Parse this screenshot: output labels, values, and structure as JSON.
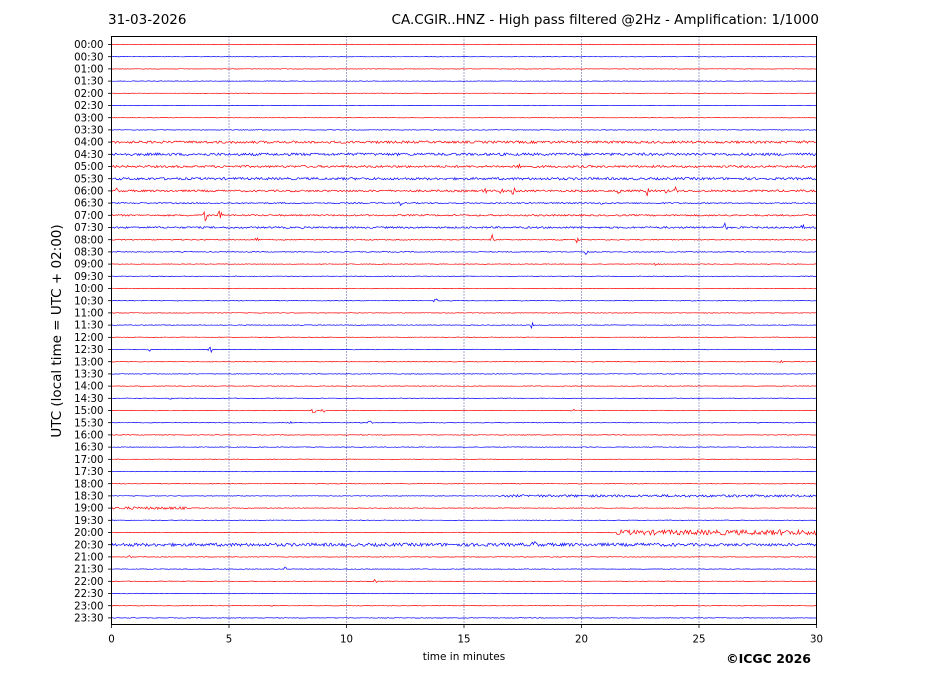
{
  "header": {
    "date": "31-03-2026",
    "title": "CA.CGIR..HNZ - High pass filtered @2Hz - Amplification: 1/1000"
  },
  "footer": {
    "copyright": "©ICGC 2026"
  },
  "colors": {
    "red": "#ff0000",
    "blue": "#0000ff",
    "grid": "#1f2a8f"
  },
  "chart_data": {
    "type": "line",
    "title": "CA.CGIR..HNZ - High pass filtered @2Hz - Amplification: 1/1000",
    "xlabel": "time in minutes",
    "ylabel": "UTC (local time = UTC + 02:00)",
    "xlim": [
      0,
      30
    ],
    "x_ticks": [
      "0",
      "5",
      "10",
      "15",
      "20",
      "25",
      "30"
    ],
    "grid": "vertical dotted at 5-minute intervals",
    "rows": [
      {
        "label": "00:00",
        "color": "red",
        "noise": 0.25
      },
      {
        "label": "00:30",
        "color": "blue",
        "noise": 0.25
      },
      {
        "label": "01:00",
        "color": "red",
        "noise": 0.25
      },
      {
        "label": "01:30",
        "color": "blue",
        "noise": 0.25
      },
      {
        "label": "02:00",
        "color": "red",
        "noise": 0.25
      },
      {
        "label": "02:30",
        "color": "blue",
        "noise": 0.25
      },
      {
        "label": "03:00",
        "color": "red",
        "noise": 0.25
      },
      {
        "label": "03:30",
        "color": "blue",
        "noise": 0.3
      },
      {
        "label": "04:00",
        "color": "red",
        "noise": 1.2
      },
      {
        "label": "04:30",
        "color": "blue",
        "noise": 1.3
      },
      {
        "label": "05:00",
        "color": "red",
        "noise": 1.1,
        "events": [
          [
            17.3,
            3
          ]
        ]
      },
      {
        "label": "05:30",
        "color": "blue",
        "noise": 1.2
      },
      {
        "label": "06:00",
        "color": "red",
        "noise": 1.0,
        "events": [
          [
            0.2,
            3
          ],
          [
            15.9,
            4
          ],
          [
            16.6,
            4
          ],
          [
            17.1,
            5
          ],
          [
            21.6,
            5
          ],
          [
            22.8,
            5
          ],
          [
            23.6,
            3
          ],
          [
            24.0,
            4
          ]
        ]
      },
      {
        "label": "06:30",
        "color": "blue",
        "noise": 0.6,
        "events": [
          [
            12.3,
            3
          ],
          [
            20.8,
            3
          ]
        ]
      },
      {
        "label": "07:00",
        "color": "red",
        "noise": 0.8,
        "events": [
          [
            4.0,
            7
          ],
          [
            4.6,
            6
          ]
        ]
      },
      {
        "label": "07:30",
        "color": "blue",
        "noise": 0.9,
        "events": [
          [
            26.1,
            4
          ],
          [
            29.4,
            3
          ]
        ]
      },
      {
        "label": "08:00",
        "color": "red",
        "noise": 0.5,
        "events": [
          [
            6.2,
            4
          ],
          [
            16.2,
            5
          ],
          [
            19.8,
            3
          ]
        ]
      },
      {
        "label": "08:30",
        "color": "blue",
        "noise": 0.4,
        "events": [
          [
            0.3,
            3
          ],
          [
            20.2,
            3
          ]
        ]
      },
      {
        "label": "09:00",
        "color": "red",
        "noise": 0.3,
        "events": [
          [
            23.2,
            4
          ]
        ]
      },
      {
        "label": "09:30",
        "color": "blue",
        "noise": 0.3
      },
      {
        "label": "10:00",
        "color": "red",
        "noise": 0.3
      },
      {
        "label": "10:30",
        "color": "blue",
        "noise": 0.3,
        "events": [
          [
            13.8,
            3
          ]
        ]
      },
      {
        "label": "11:00",
        "color": "red",
        "noise": 0.3
      },
      {
        "label": "11:30",
        "color": "blue",
        "noise": 0.3,
        "events": [
          [
            17.9,
            4
          ]
        ]
      },
      {
        "label": "12:00",
        "color": "red",
        "noise": 0.3
      },
      {
        "label": "12:30",
        "color": "blue",
        "noise": 0.3,
        "events": [
          [
            1.6,
            3
          ],
          [
            4.2,
            4
          ]
        ]
      },
      {
        "label": "13:00",
        "color": "red",
        "noise": 0.3,
        "events": [
          [
            28.5,
            2
          ]
        ]
      },
      {
        "label": "13:30",
        "color": "blue",
        "noise": 0.3
      },
      {
        "label": "14:00",
        "color": "red",
        "noise": 0.3,
        "events": [
          [
            1.3,
            2
          ]
        ]
      },
      {
        "label": "14:30",
        "color": "blue",
        "noise": 0.3,
        "events": [
          [
            2.5,
            2
          ]
        ]
      },
      {
        "label": "15:00",
        "color": "red",
        "noise": 0.3,
        "events": [
          [
            8.6,
            4
          ],
          [
            9.0,
            3
          ],
          [
            19.6,
            5
          ]
        ]
      },
      {
        "label": "15:30",
        "color": "blue",
        "noise": 0.3,
        "events": [
          [
            7.6,
            2
          ],
          [
            11.0,
            3
          ]
        ]
      },
      {
        "label": "16:00",
        "color": "red",
        "noise": 0.3
      },
      {
        "label": "16:30",
        "color": "blue",
        "noise": 0.3
      },
      {
        "label": "17:00",
        "color": "red",
        "noise": 0.3
      },
      {
        "label": "17:30",
        "color": "blue",
        "noise": 0.3
      },
      {
        "label": "18:00",
        "color": "red",
        "noise": 0.3
      },
      {
        "label": "18:30",
        "color": "blue",
        "noise": 0.3,
        "bursts": [
          [
            16.5,
            30,
            1.2
          ]
        ]
      },
      {
        "label": "19:00",
        "color": "red",
        "noise": 0.3,
        "bursts": [
          [
            0,
            3.2,
            1.3
          ]
        ]
      },
      {
        "label": "19:30",
        "color": "blue",
        "noise": 0.3
      },
      {
        "label": "20:00",
        "color": "red",
        "noise": 0.3,
        "bursts": [
          [
            21.5,
            30,
            2.5
          ]
        ],
        "events": [
          [
            28.5,
            4
          ]
        ]
      },
      {
        "label": "20:30",
        "color": "blue",
        "noise": 1.4,
        "bursts": [
          [
            0,
            24,
            1.6
          ]
        ],
        "events": [
          [
            15.5,
            4
          ],
          [
            18.0,
            4
          ]
        ]
      },
      {
        "label": "21:00",
        "color": "red",
        "noise": 0.3,
        "events": [
          [
            0.8,
            2
          ]
        ]
      },
      {
        "label": "21:30",
        "color": "blue",
        "noise": 0.3,
        "events": [
          [
            7.4,
            3
          ]
        ]
      },
      {
        "label": "22:00",
        "color": "red",
        "noise": 0.3,
        "events": [
          [
            11.2,
            3
          ]
        ]
      },
      {
        "label": "22:30",
        "color": "blue",
        "noise": 0.3
      },
      {
        "label": "23:00",
        "color": "red",
        "noise": 0.3
      },
      {
        "label": "23:30",
        "color": "blue",
        "noise": 0.3
      }
    ]
  }
}
